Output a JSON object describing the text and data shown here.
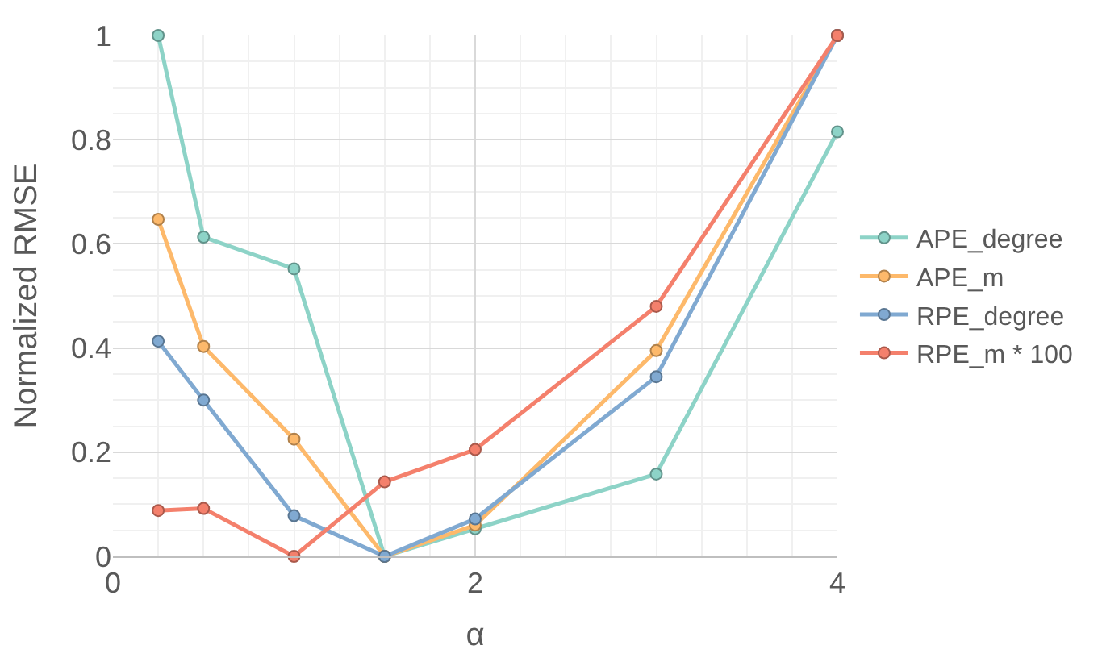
{
  "chart_data": {
    "type": "line",
    "xlabel": "α",
    "ylabel": "Normalized RMSE",
    "x": [
      0.25,
      0.5,
      1,
      1.5,
      2,
      3,
      4
    ],
    "xlim": [
      0,
      4
    ],
    "xticks": [
      0,
      2,
      4
    ],
    "ylim": [
      0,
      1
    ],
    "yticks": [
      0,
      0.2,
      0.4,
      0.6,
      0.8,
      1
    ],
    "grid": true,
    "legend": "right",
    "marker": "circle",
    "line_style": "solid",
    "series": [
      {
        "name": "APE_degree",
        "color": "#8dd3c7",
        "values": [
          1.0,
          0.613,
          0.552,
          0,
          0.053,
          0.158,
          0.815
        ]
      },
      {
        "name": "APE_m",
        "color": "#fdb96b",
        "values": [
          0.647,
          0.403,
          0.225,
          0,
          0.06,
          0.395,
          1.0
        ]
      },
      {
        "name": "RPE_degree",
        "color": "#80a9d1",
        "values": [
          0.413,
          0.3,
          0.078,
          0,
          0.072,
          0.345,
          1.0
        ]
      },
      {
        "name": "RPE_m * 100",
        "color": "#f4806c",
        "values": [
          0.088,
          0.092,
          0,
          0.143,
          0.205,
          0.48,
          1.0
        ]
      }
    ]
  }
}
